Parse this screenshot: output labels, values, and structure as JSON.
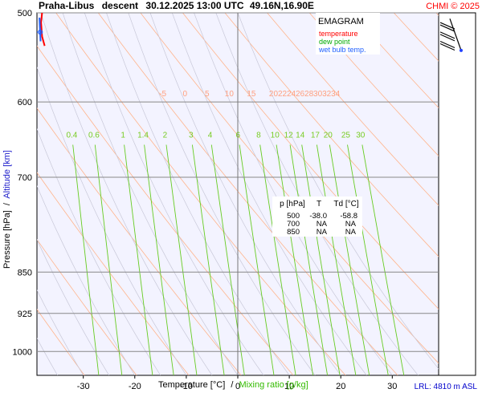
{
  "header": {
    "station": "Praha-Libus",
    "mode": "descent",
    "datetime": "30.12.2025 13:00 UTC",
    "coords": "49.16N,16.90E",
    "credit": "CHMI © 2025"
  },
  "legend": {
    "title": "EMAGRAM",
    "items": [
      {
        "label": "temperature",
        "color": "#ff0000"
      },
      {
        "label": "dew point",
        "color": "#00aa00"
      },
      {
        "label": "wet bulb temp.",
        "color": "#2060ff"
      }
    ]
  },
  "axes": {
    "ylabel_pressure": "Pressure [hPa]",
    "ylabel_sep": "/",
    "ylabel_altitude": "Altitude [km]",
    "xlabel_temp": "Temperature [°C]",
    "xlabel_sep": "/",
    "xlabel_mixing": "Mixing ratio [g/kg]"
  },
  "lrl": "LRL: 4810 m ASL",
  "table": {
    "headers": [
      "p [hPa]",
      "T",
      "Td [°C]"
    ],
    "rows": [
      [
        "500",
        "-38.0",
        "-58.8"
      ],
      [
        "700",
        "NA",
        "NA"
      ],
      [
        "850",
        "NA",
        "NA"
      ]
    ]
  },
  "chart_data": {
    "type": "line",
    "xlim": [
      -39,
      39
    ],
    "ylim_hpa": [
      500,
      1050
    ],
    "y_scale": "log-pressure",
    "pressure_ticks": [
      500,
      600,
      700,
      850,
      925,
      1000
    ],
    "temp_ticks": [
      -30,
      -20,
      -10,
      0,
      10,
      20,
      30
    ],
    "dry_adiabat_labels": [
      "-5",
      "0",
      "5",
      "10",
      "15",
      "20",
      "22",
      "24",
      "26",
      "28",
      "30",
      "32",
      "34"
    ],
    "mixing_ratio_labels": [
      "0.4",
      "0.6",
      "1",
      "1.4",
      "2",
      "3",
      "4",
      "6",
      "8",
      "10",
      "12",
      "14",
      "17",
      "20",
      "25",
      "30"
    ],
    "series": [
      {
        "name": "temperature",
        "color": "#ff0000",
        "points": [
          {
            "p": 500,
            "t": -38.0
          },
          {
            "p": 510,
            "t": -38.2
          },
          {
            "p": 525,
            "t": -38.0
          },
          {
            "p": 535,
            "t": -37.5
          }
        ]
      },
      {
        "name": "wet bulb temp.",
        "color": "#2060ff",
        "points": [
          {
            "p": 505,
            "t": -38.5
          },
          {
            "p": 530,
            "t": -38.3
          }
        ]
      }
    ],
    "wind_barbs": [
      {
        "p": 510,
        "dir": 300,
        "speed": 50
      },
      {
        "p": 520,
        "dir": 300,
        "speed": 55
      },
      {
        "p": 530,
        "dir": 305,
        "speed": 50
      }
    ]
  }
}
